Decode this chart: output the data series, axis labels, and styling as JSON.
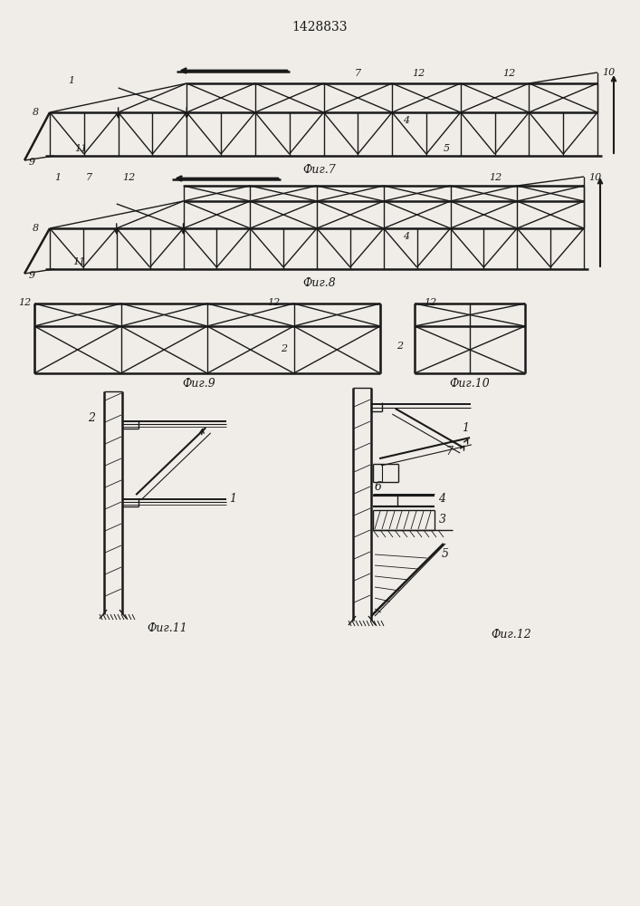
{
  "title": "1428833",
  "bg_color": "#f0ede8",
  "line_color": "#1a1a1a",
  "lw": 1.0,
  "lwt": 1.8,
  "fig7_label": "Фиг.7",
  "fig8_label": "Фиг.8",
  "fig9_label": "Фиг.9",
  "fig10_label": "Фиг.10",
  "fig11_label": "Фиг.11",
  "fig12_label": "Фиг.12"
}
